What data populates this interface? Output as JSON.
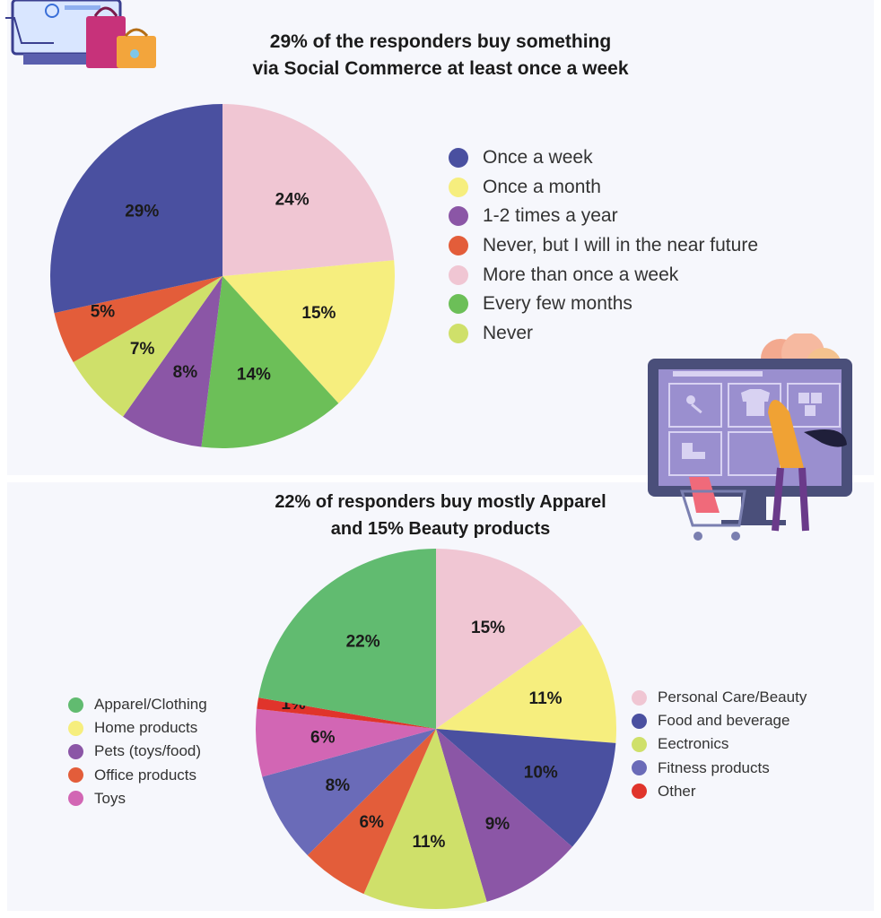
{
  "chart_data": [
    {
      "type": "pie",
      "title": [
        "29% of the responders buy something",
        "via Social Commerce at least once a week"
      ],
      "slices": [
        {
          "label": "More than once a week",
          "value": 24,
          "display": "24%",
          "color": "#f0c6d3"
        },
        {
          "label": "Once a month",
          "value": 15,
          "display": "15%",
          "color": "#f6ee7e"
        },
        {
          "label": "Every few months",
          "value": 14,
          "display": "14%",
          "color": "#6cbf58"
        },
        {
          "label": "1-2 times a year",
          "value": 8,
          "display": "8%",
          "color": "#8b56a6"
        },
        {
          "label": "Never",
          "value": 7,
          "display": "7%",
          "color": "#cfe06a"
        },
        {
          "label": "Never, but I will in the near future",
          "value": 5,
          "display": "5%",
          "color": "#e35d3a"
        },
        {
          "label": "Once a week",
          "value": 29,
          "display": "29%",
          "color": "#4a50a0"
        }
      ],
      "legend": [
        {
          "label": "Once a week",
          "color": "#4a50a0"
        },
        {
          "label": "Once a month",
          "color": "#f6ee7e"
        },
        {
          "label": "1-2 times a year",
          "color": "#8b56a6"
        },
        {
          "label": "Never, but I will in the near future",
          "color": "#e35d3a"
        },
        {
          "label": "More than once a week",
          "color": "#f0c6d3"
        },
        {
          "label": "Every few months",
          "color": "#6cbf58"
        },
        {
          "label": "Never",
          "color": "#cfe06a"
        }
      ]
    },
    {
      "type": "pie",
      "title": [
        "22% of responders buy mostly Apparel",
        "and 15% Beauty products"
      ],
      "slices": [
        {
          "label": "Personal Care/Beauty",
          "value": 15,
          "display": "15%",
          "color": "#f0c6d3"
        },
        {
          "label": "Home products",
          "value": 11,
          "display": "11%",
          "color": "#f6ee7e"
        },
        {
          "label": "Food and beverage",
          "value": 10,
          "display": "10%",
          "color": "#4a50a0"
        },
        {
          "label": "Pets (toys/food)",
          "value": 9,
          "display": "9%",
          "color": "#8b56a6"
        },
        {
          "label": "Eectronics",
          "value": 11,
          "display": "11%",
          "color": "#cfe06a"
        },
        {
          "label": "Office products",
          "value": 6,
          "display": "6%",
          "color": "#e35d3a"
        },
        {
          "label": "Fitness products",
          "value": 8,
          "display": "8%",
          "color": "#6a6bb8"
        },
        {
          "label": "Toys",
          "value": 6,
          "display": "6%",
          "color": "#d266b4"
        },
        {
          "label": "Other",
          "value": 1,
          "display": "1%",
          "color": "#e0342b"
        },
        {
          "label": "Apparel/Clothing",
          "value": 22,
          "display": "22%",
          "color": "#61bb70"
        }
      ],
      "legend_left": [
        {
          "label": "Apparel/Clothing",
          "color": "#61bb70"
        },
        {
          "label": "Home products",
          "color": "#f6ee7e"
        },
        {
          "label": "Pets (toys/food)",
          "color": "#8b56a6"
        },
        {
          "label": "Office products",
          "color": "#e35d3a"
        },
        {
          "label": "Toys",
          "color": "#d266b4"
        }
      ],
      "legend_right": [
        {
          "label": "Personal Care/Beauty",
          "color": "#f0c6d3"
        },
        {
          "label": "Food and beverage",
          "color": "#4a50a0"
        },
        {
          "label": "Eectronics",
          "color": "#cfe06a"
        },
        {
          "label": "Fitness products",
          "color": "#6a6bb8"
        },
        {
          "label": "Other",
          "color": "#e0342b"
        }
      ]
    }
  ],
  "illustrations": [
    {
      "name": "online-shopping-illustration"
    },
    {
      "name": "shopper-at-screen-illustration"
    }
  ]
}
